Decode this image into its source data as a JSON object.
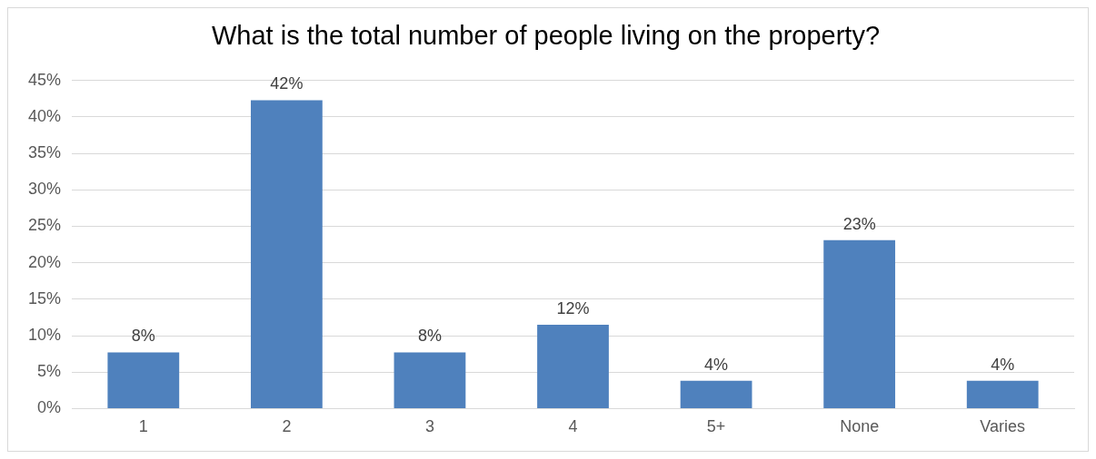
{
  "chart_data": {
    "type": "bar",
    "title": "What is the total number of people living on the property?",
    "categories": [
      "1",
      "2",
      "3",
      "4",
      "5+",
      "None",
      "Varies"
    ],
    "values": [
      7.7,
      42.3,
      7.7,
      11.5,
      3.8,
      23.1,
      3.8
    ],
    "value_labels": [
      "8%",
      "42%",
      "8%",
      "12%",
      "4%",
      "23%",
      "4%"
    ],
    "color": "#4f81bd",
    "ylim": [
      0,
      45
    ],
    "yticks": [
      {
        "value": 0,
        "label": "0%"
      },
      {
        "value": 5,
        "label": "5%"
      },
      {
        "value": 10,
        "label": "10%"
      },
      {
        "value": 15,
        "label": "15%"
      },
      {
        "value": 20,
        "label": "20%"
      },
      {
        "value": 25,
        "label": "25%"
      },
      {
        "value": 30,
        "label": "30%"
      },
      {
        "value": 35,
        "label": "35%"
      },
      {
        "value": 40,
        "label": "40%"
      },
      {
        "value": 45,
        "label": "45%"
      }
    ],
    "grid": "y",
    "legend": false
  }
}
